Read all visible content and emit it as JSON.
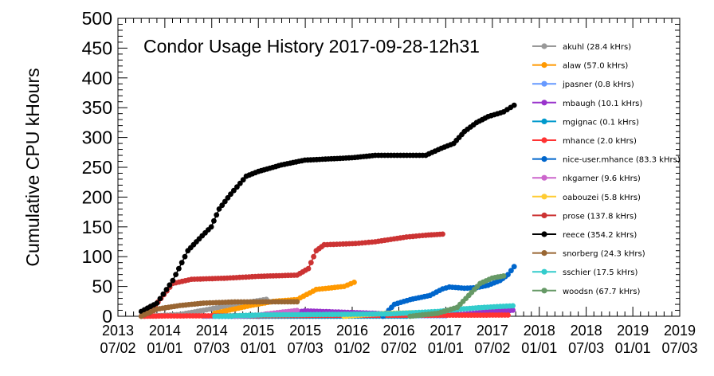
{
  "chart_data": {
    "type": "line",
    "title": "Condor Usage History  2017-09-28-12h31",
    "ylabel": "Cumulative CPU kHours",
    "xlabel": "",
    "ylim": [
      0,
      500
    ],
    "xlim": [
      "2013-07-02",
      "2019-07-03"
    ],
    "yticks": [
      "0",
      "50",
      "100",
      "150",
      "200",
      "250",
      "300",
      "350",
      "400",
      "450",
      "500"
    ],
    "xticks": [
      {
        "date": "2013-07-02",
        "line1": "2013",
        "line2": "07/02"
      },
      {
        "date": "2014-01-01",
        "line1": "2014",
        "line2": "01/01"
      },
      {
        "date": "2014-07-03",
        "line1": "2014",
        "line2": "07/03"
      },
      {
        "date": "2015-01-01",
        "line1": "2015",
        "line2": "01/01"
      },
      {
        "date": "2015-07-03",
        "line1": "2015",
        "line2": "07/03"
      },
      {
        "date": "2016-01-02",
        "line1": "2016",
        "line2": "01/02"
      },
      {
        "date": "2016-07-02",
        "line1": "2016",
        "line2": "07/02"
      },
      {
        "date": "2017-01-01",
        "line1": "2017",
        "line2": "01/01"
      },
      {
        "date": "2017-07-02",
        "line1": "2017",
        "line2": "07/02"
      },
      {
        "date": "2018-01-01",
        "line1": "2018",
        "line2": "01/01"
      },
      {
        "date": "2018-07-03",
        "line1": "2018",
        "line2": "07/03"
      },
      {
        "date": "2019-01-01",
        "line1": "2019",
        "line2": "01/01"
      },
      {
        "date": "2019-07-03",
        "line1": "2019",
        "line2": "07/03"
      }
    ],
    "grid": false,
    "legend_position": "right",
    "series": [
      {
        "name": "akuhl (28.4 kHrs)",
        "color": "#999999",
        "points": [
          [
            "2013-10-15",
            0
          ],
          [
            "2014-03-01",
            3
          ],
          [
            "2014-06-01",
            10
          ],
          [
            "2014-10-01",
            20
          ],
          [
            "2015-02-01",
            28.4
          ]
        ]
      },
      {
        "name": "alaw (57.0 kHrs)",
        "color": "#ff9900",
        "points": [
          [
            "2014-07-15",
            5
          ],
          [
            "2014-12-01",
            18
          ],
          [
            "2015-03-01",
            25
          ],
          [
            "2015-06-01",
            28
          ],
          [
            "2015-08-15",
            45
          ],
          [
            "2015-12-01",
            50
          ],
          [
            "2016-01-10",
            57
          ]
        ]
      },
      {
        "name": "jpasner (0.8 kHrs)",
        "color": "#6699ff",
        "points": [
          [
            "2014-06-01",
            0
          ],
          [
            "2015-01-01",
            0.3
          ],
          [
            "2016-01-01",
            0.6
          ],
          [
            "2017-01-01",
            0.8
          ]
        ]
      },
      {
        "name": "mbaugh (10.1 kHrs)",
        "color": "#9933cc",
        "points": [
          [
            "2015-01-01",
            0
          ],
          [
            "2015-05-01",
            5
          ],
          [
            "2015-07-01",
            9
          ],
          [
            "2016-06-01",
            4
          ],
          [
            "2017-03-01",
            3
          ],
          [
            "2017-07-01",
            8
          ],
          [
            "2017-09-20",
            10.1
          ]
        ]
      },
      {
        "name": "mgignac (0.1 kHrs)",
        "color": "#0099cc",
        "points": [
          [
            "2014-08-01",
            0
          ],
          [
            "2015-08-01",
            0.05
          ],
          [
            "2016-08-01",
            0.1
          ]
        ]
      },
      {
        "name": "mhance (2.0 kHrs)",
        "color": "#ff3333",
        "points": [
          [
            "2013-10-01",
            0
          ],
          [
            "2014-01-01",
            0.5
          ],
          [
            "2015-01-01",
            1
          ],
          [
            "2016-01-01",
            1.5
          ],
          [
            "2017-09-01",
            2
          ]
        ]
      },
      {
        "name": "nice-user.mhance (83.3 kHrs)",
        "color": "#0066cc",
        "points": [
          [
            "2016-05-01",
            0
          ],
          [
            "2016-06-15",
            20
          ],
          [
            "2016-08-15",
            28
          ],
          [
            "2016-11-01",
            35
          ],
          [
            "2016-12-20",
            46
          ],
          [
            "2017-01-15",
            49
          ],
          [
            "2017-03-15",
            47
          ],
          [
            "2017-05-01",
            48
          ],
          [
            "2017-06-15",
            52
          ],
          [
            "2017-08-01",
            60
          ],
          [
            "2017-09-01",
            70
          ],
          [
            "2017-09-25",
            83.3
          ]
        ]
      },
      {
        "name": "nkgarner (9.6 kHrs)",
        "color": "#cc66cc",
        "points": [
          [
            "2014-10-01",
            0
          ],
          [
            "2015-01-01",
            2
          ],
          [
            "2015-03-15",
            6
          ],
          [
            "2015-06-01",
            9.6
          ]
        ]
      },
      {
        "name": "oabouzei (5.8 kHrs)",
        "color": "#ffcc33",
        "points": [
          [
            "2015-12-01",
            0
          ],
          [
            "2016-03-01",
            3
          ],
          [
            "2016-06-01",
            5
          ],
          [
            "2016-09-01",
            5.8
          ]
        ]
      },
      {
        "name": "prose (137.8 kHrs)",
        "color": "#cc3333",
        "points": [
          [
            "2013-11-01",
            5
          ],
          [
            "2014-02-01",
            55
          ],
          [
            "2014-04-15",
            62
          ],
          [
            "2014-09-01",
            64
          ],
          [
            "2015-01-01",
            67
          ],
          [
            "2015-06-01",
            69
          ],
          [
            "2015-07-15",
            80
          ],
          [
            "2015-08-15",
            110
          ],
          [
            "2015-09-15",
            120
          ],
          [
            "2016-01-15",
            122
          ],
          [
            "2016-04-01",
            125
          ],
          [
            "2016-08-01",
            133
          ],
          [
            "2016-10-15",
            136
          ],
          [
            "2016-12-20",
            137.8
          ]
        ]
      },
      {
        "name": "reece (354.2 kHrs)",
        "color": "#000000",
        "points": [
          [
            "2013-10-01",
            8
          ],
          [
            "2013-12-01",
            22
          ],
          [
            "2014-02-01",
            60
          ],
          [
            "2014-04-01",
            110
          ],
          [
            "2014-05-15",
            130
          ],
          [
            "2014-07-01",
            150
          ],
          [
            "2014-08-01",
            180
          ],
          [
            "2014-09-15",
            205
          ],
          [
            "2014-11-15",
            235
          ],
          [
            "2015-01-01",
            243
          ],
          [
            "2015-04-01",
            254
          ],
          [
            "2015-07-01",
            262
          ],
          [
            "2015-10-01",
            264
          ],
          [
            "2016-01-01",
            266
          ],
          [
            "2016-04-01",
            270
          ],
          [
            "2016-10-15",
            270
          ],
          [
            "2016-12-15",
            282
          ],
          [
            "2017-02-01",
            290
          ],
          [
            "2017-03-15",
            310
          ],
          [
            "2017-05-01",
            325
          ],
          [
            "2017-06-15",
            335
          ],
          [
            "2017-08-15",
            343
          ],
          [
            "2017-09-25",
            354.2
          ]
        ]
      },
      {
        "name": "snorberg (24.3 kHrs)",
        "color": "#996633",
        "points": [
          [
            "2013-10-01",
            0
          ],
          [
            "2013-12-01",
            12
          ],
          [
            "2014-03-01",
            18
          ],
          [
            "2014-06-01",
            22
          ],
          [
            "2014-10-01",
            24
          ],
          [
            "2015-06-01",
            24.3
          ]
        ]
      },
      {
        "name": "sschier (17.5 kHrs)",
        "color": "#33cccc",
        "points": [
          [
            "2014-07-15",
            0
          ],
          [
            "2015-01-01",
            2
          ],
          [
            "2016-06-01",
            4
          ],
          [
            "2016-12-01",
            8
          ],
          [
            "2017-03-01",
            12
          ],
          [
            "2017-06-01",
            15
          ],
          [
            "2017-09-20",
            17.5
          ]
        ]
      },
      {
        "name": "woodsn (67.7 kHrs)",
        "color": "#669966",
        "points": [
          [
            "2016-08-15",
            0
          ],
          [
            "2016-12-01",
            5
          ],
          [
            "2017-02-15",
            15
          ],
          [
            "2017-04-01",
            35
          ],
          [
            "2017-05-15",
            55
          ],
          [
            "2017-07-01",
            64
          ],
          [
            "2017-08-15",
            67.7
          ]
        ]
      }
    ]
  }
}
